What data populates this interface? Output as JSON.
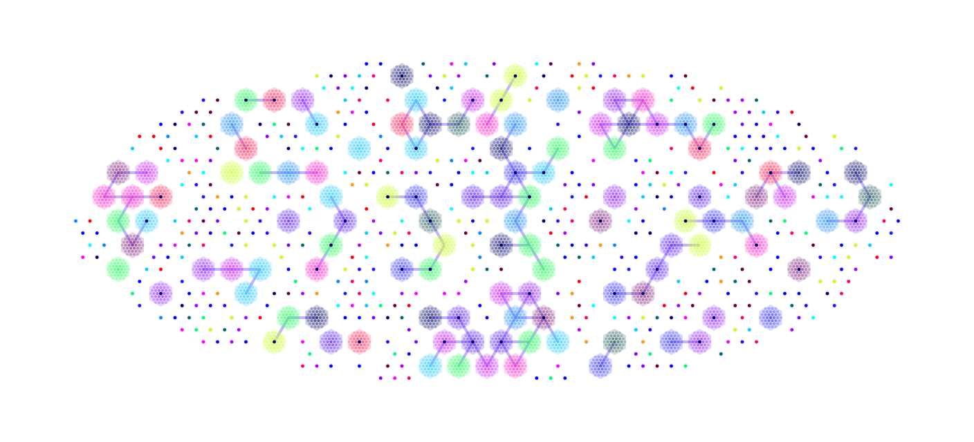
{
  "artwork": {
    "background": "#ffffff",
    "palette": [
      "#0000ff",
      "#0000ff",
      "#0000ff",
      "#1a1aff",
      "#3300ff",
      "#7f00ff",
      "#aa00ff",
      "#ff00ff",
      "#ff0066",
      "#ff0000",
      "#0088ff",
      "#00ccff",
      "#00ffff",
      "#000066",
      "#660033",
      "#006666",
      "#00ff66",
      "#ccff00",
      "#ff9900"
    ],
    "cluster_palette": [
      "#4444ff",
      "#6a33ff",
      "#9933ff",
      "#cc33ff",
      "#ff33cc",
      "#3399ff",
      "#33ccff",
      "#ff3366",
      "#222277",
      "#336666",
      "#33ff66",
      "#ccff33",
      "#883388"
    ],
    "link_color": "#7755ff"
  }
}
